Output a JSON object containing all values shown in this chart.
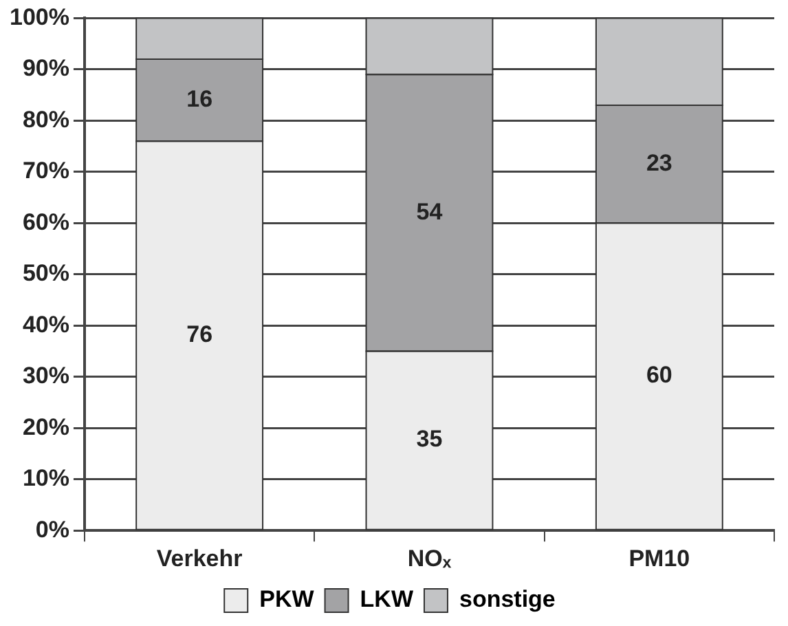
{
  "chart_data": {
    "type": "bar",
    "stacked": true,
    "categories": [
      "Verkehr",
      "NOₓ",
      "PM10"
    ],
    "series": [
      {
        "name": "PKW",
        "color": "#ececec",
        "values": [
          76,
          35,
          60
        ],
        "value_labels": [
          "76",
          "35",
          "60"
        ]
      },
      {
        "name": "LKW",
        "color": "#a3a3a5",
        "values": [
          16,
          54,
          23
        ],
        "value_labels": [
          "16",
          "54",
          "23"
        ]
      },
      {
        "name": "sonstige",
        "color": "#c2c3c5",
        "values": [
          8,
          11,
          17
        ],
        "value_labels": [
          null,
          null,
          null
        ]
      }
    ],
    "ylim": [
      0,
      100
    ],
    "yticks": [
      {
        "value": 0,
        "label": "0%"
      },
      {
        "value": 10,
        "label": "10%"
      },
      {
        "value": 20,
        "label": "20%"
      },
      {
        "value": 30,
        "label": "30%"
      },
      {
        "value": 40,
        "label": "40%"
      },
      {
        "value": 50,
        "label": "50%"
      },
      {
        "value": 60,
        "label": "60%"
      },
      {
        "value": 70,
        "label": "70%"
      },
      {
        "value": 80,
        "label": "80%"
      },
      {
        "value": 90,
        "label": "90%"
      },
      {
        "value": 100,
        "label": "100%"
      }
    ],
    "grid": "y",
    "legend": "bottom"
  }
}
